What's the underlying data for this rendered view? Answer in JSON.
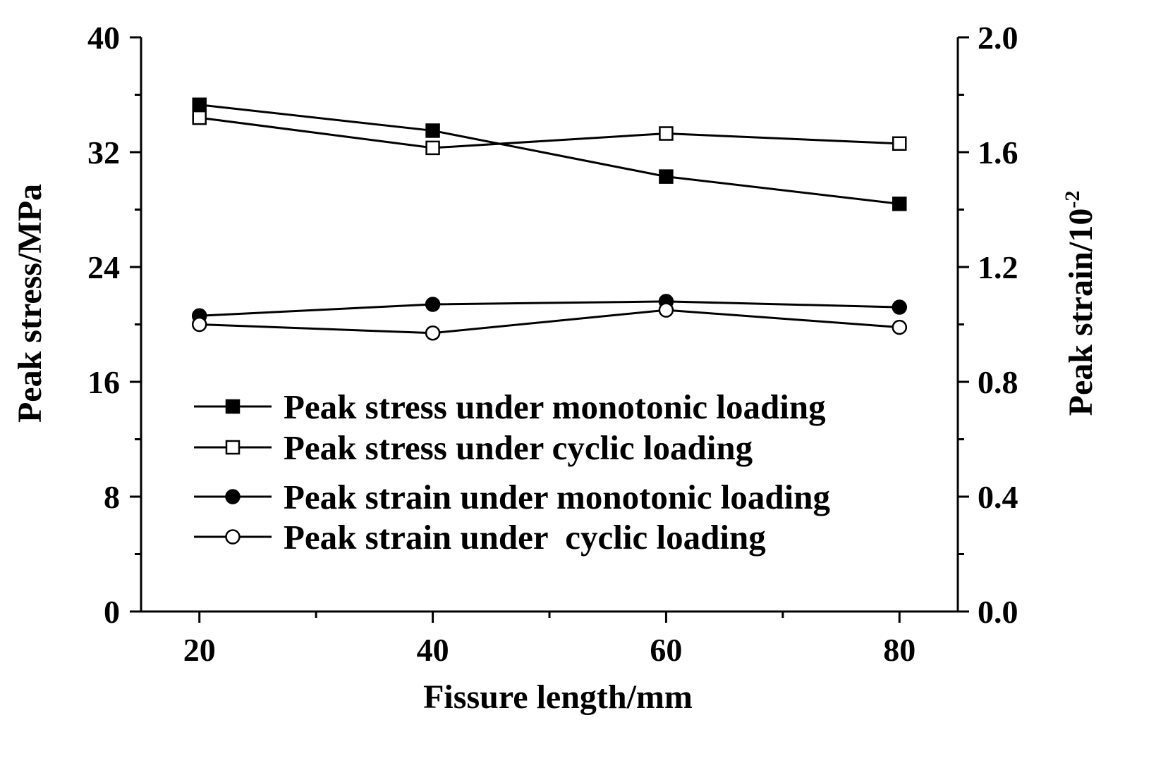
{
  "chart_data": {
    "type": "line",
    "title": "",
    "xlabel": "Fissure length/mm",
    "ylabel_left": "Peak stress/MPa",
    "ylabel_right_base": "Peak strain/10",
    "ylabel_right_exp": "-2",
    "x": [
      20,
      40,
      60,
      80
    ],
    "xlim": [
      15,
      85
    ],
    "xticks": [
      20,
      40,
      60,
      80
    ],
    "xtick_labels": [
      "20",
      "40",
      "60",
      "80"
    ],
    "ylim_left": [
      0,
      40
    ],
    "yticks_left": [
      0,
      8,
      16,
      24,
      32,
      40
    ],
    "ytick_labels_left": [
      "0",
      "8",
      "16",
      "24",
      "32",
      "40"
    ],
    "ylim_right": [
      0,
      2.0
    ],
    "yticks_right": [
      0.0,
      0.4,
      0.8,
      1.2,
      1.6,
      2.0
    ],
    "ytick_labels_right": [
      "0.0",
      "0.4",
      "0.8",
      "1.2",
      "1.6",
      "2.0"
    ],
    "grid": false,
    "legend_position": "lower-left",
    "series": [
      {
        "name": "Peak stress under monotonic loading",
        "axis": "left",
        "marker": "square-filled",
        "values": [
          35.3,
          33.5,
          30.3,
          28.4
        ]
      },
      {
        "name": "Peak stress under cyclic loading",
        "axis": "left",
        "marker": "square-open",
        "values": [
          34.4,
          32.3,
          33.3,
          32.6
        ]
      },
      {
        "name": "Peak strain under monotonic loading",
        "axis": "right",
        "marker": "circle-filled",
        "values": [
          1.03,
          1.07,
          1.08,
          1.06
        ]
      },
      {
        "name": "Peak strain under  cyclic loading",
        "axis": "right",
        "marker": "circle-open",
        "values": [
          1.0,
          0.97,
          1.05,
          0.99
        ]
      }
    ]
  }
}
